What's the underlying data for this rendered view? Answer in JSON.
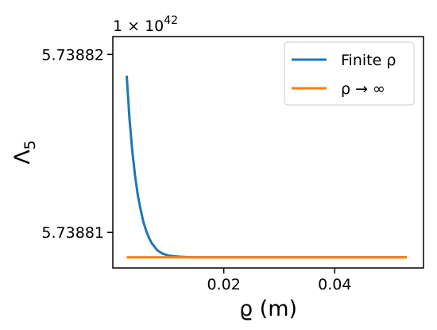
{
  "chart_data": {
    "type": "line",
    "xlabel": "ϱ (m)",
    "ylabel": "Λ",
    "ylabel_subscript": "5",
    "y_offset_label": {
      "base": "1 × 10",
      "exponent": "42"
    },
    "xlim": [
      0.0,
      0.056
    ],
    "ylim": [
      5.738808,
      5.738821
    ],
    "xticks": [
      {
        "value": 0.02,
        "label": "0.02"
      },
      {
        "value": 0.04,
        "label": "0.04"
      }
    ],
    "yticks": [
      {
        "value": 5.73881,
        "label": "5.73881"
      },
      {
        "value": 5.73882,
        "label": "5.73882"
      }
    ],
    "legend_position": "top-right",
    "series": [
      {
        "name": "Finite ρ",
        "color": "#1f77b4",
        "x": [
          0.0025,
          0.003,
          0.0035,
          0.004,
          0.0045,
          0.005,
          0.0055,
          0.006,
          0.0065,
          0.007,
          0.0075,
          0.008,
          0.009,
          0.01,
          0.011,
          0.012,
          0.014,
          0.016,
          0.02,
          0.025,
          0.03,
          0.035,
          0.04,
          0.045,
          0.05,
          0.053
        ],
        "y": [
          5.7388188,
          5.7388164,
          5.7388146,
          5.7388132,
          5.7388121,
          5.7388113,
          5.7388106,
          5.7388101,
          5.7388097,
          5.7388094,
          5.7388092,
          5.738809,
          5.7388088,
          5.7388087,
          5.73880866,
          5.73880863,
          5.7388086,
          5.7388086,
          5.7388086,
          5.7388086,
          5.7388086,
          5.7388086,
          5.7388086,
          5.7388086,
          5.7388086,
          5.7388086
        ]
      },
      {
        "name": "ρ → ∞",
        "color": "#ff7f0e",
        "x": [
          0.0025,
          0.053
        ],
        "y": [
          5.7388086,
          5.7388086
        ]
      }
    ]
  }
}
